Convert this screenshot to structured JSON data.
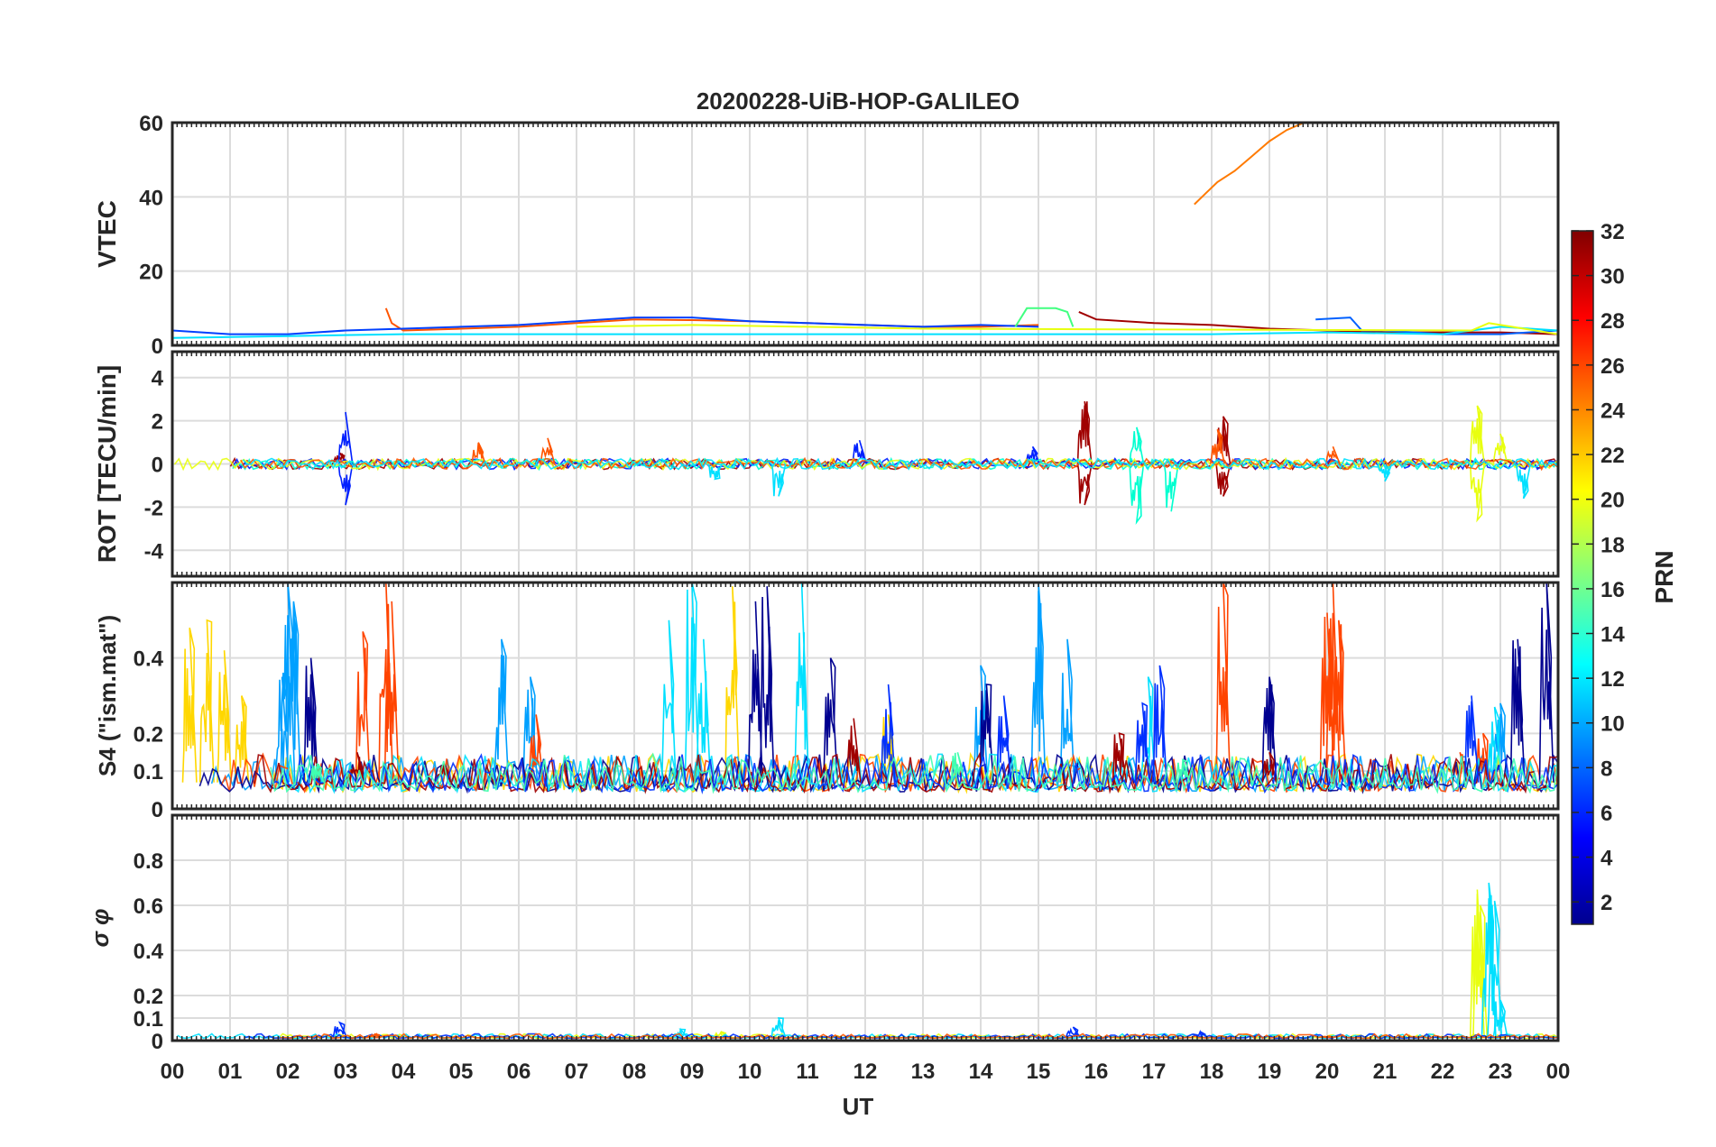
{
  "chart_data": {
    "title": "20200228-UiB-HOP-GALILEO",
    "type": "line",
    "xlabel": "UT",
    "x_unit": "hour UT",
    "xlim": [
      0,
      24
    ],
    "x_tick_labels": [
      "00",
      "01",
      "02",
      "03",
      "04",
      "05",
      "06",
      "07",
      "08",
      "09",
      "10",
      "11",
      "12",
      "13",
      "14",
      "15",
      "16",
      "17",
      "18",
      "19",
      "20",
      "21",
      "22",
      "23",
      "00"
    ],
    "grid": true,
    "colorbar": {
      "label": "PRN",
      "range": [
        1,
        32
      ],
      "ticks": [
        "32",
        "30",
        "28",
        "26",
        "24",
        "22",
        "20",
        "18",
        "16",
        "14",
        "12",
        "10",
        "8",
        "6",
        "4",
        "2"
      ],
      "colormap": "jet"
    },
    "panels": [
      {
        "id": "vtec",
        "ylabel": "VTEC",
        "ylim": [
          0,
          60
        ],
        "y_tick_labels": [
          "60",
          "40",
          "20",
          "0"
        ],
        "series": [
          {
            "prn": 24,
            "color": "#ff7a00",
            "points": [
              [
                17.7,
                38
              ],
              [
                17.9,
                41
              ],
              [
                18.1,
                44
              ],
              [
                18.4,
                47
              ],
              [
                18.7,
                51
              ],
              [
                19.0,
                55
              ],
              [
                19.3,
                58
              ],
              [
                19.6,
                60
              ]
            ]
          },
          {
            "prn": 25,
            "color": "#ff5500",
            "points": [
              [
                3.7,
                10
              ],
              [
                3.8,
                6
              ],
              [
                4.0,
                4
              ],
              [
                5,
                4.5
              ],
              [
                6,
                5
              ],
              [
                7,
                6
              ],
              [
                8,
                7
              ],
              [
                9,
                6.8
              ],
              [
                10,
                6.5
              ],
              [
                11,
                6
              ],
              [
                12,
                5.5
              ],
              [
                13,
                5
              ],
              [
                14,
                5
              ],
              [
                15,
                5.5
              ]
            ]
          },
          {
            "prn": 4,
            "color": "#0040ff",
            "points": [
              [
                0,
                4
              ],
              [
                1,
                3
              ],
              [
                2,
                3
              ],
              [
                3,
                4
              ],
              [
                4,
                4.5
              ],
              [
                5,
                5
              ],
              [
                6,
                5.5
              ],
              [
                7,
                6.5
              ],
              [
                8,
                7.5
              ],
              [
                9,
                7.5
              ],
              [
                10,
                6.5
              ],
              [
                11,
                6
              ],
              [
                12,
                5.5
              ],
              [
                13,
                5
              ],
              [
                14,
                5.5
              ],
              [
                15,
                5
              ]
            ]
          },
          {
            "prn": 14,
            "color": "#40ff80",
            "points": [
              [
                14.6,
                5
              ],
              [
                14.8,
                10
              ],
              [
                15.3,
                10
              ],
              [
                15.5,
                9
              ],
              [
                15.6,
                5
              ]
            ]
          },
          {
            "prn": 31,
            "color": "#a00000",
            "points": [
              [
                15.7,
                9
              ],
              [
                16,
                7
              ],
              [
                17,
                6
              ],
              [
                18,
                5.5
              ],
              [
                19,
                4.5
              ],
              [
                20,
                4
              ],
              [
                21,
                3.5
              ],
              [
                22,
                3.5
              ],
              [
                23,
                3.5
              ],
              [
                24,
                3
              ]
            ]
          },
          {
            "prn": 7,
            "color": "#0060ff",
            "points": [
              [
                19.8,
                7
              ],
              [
                20.4,
                7.5
              ],
              [
                20.6,
                4
              ],
              [
                21,
                4
              ],
              [
                22,
                3
              ],
              [
                23,
                3
              ],
              [
                24,
                4
              ]
            ]
          },
          {
            "prn": 12,
            "color": "#00e0ff",
            "points": [
              [
                0,
                2
              ],
              [
                2,
                2.5
              ],
              [
                4,
                3
              ],
              [
                16,
                3
              ],
              [
                18,
                3
              ],
              [
                20,
                3.5
              ],
              [
                22,
                3
              ],
              [
                23,
                5
              ],
              [
                24,
                4
              ]
            ]
          },
          {
            "prn": 20,
            "color": "#e8ff10",
            "points": [
              [
                7,
                5
              ],
              [
                9,
                5.5
              ],
              [
                11,
                5
              ],
              [
                13,
                4.5
              ],
              [
                22.5,
                4
              ],
              [
                22.8,
                6
              ],
              [
                23.2,
                5
              ],
              [
                24,
                3
              ]
            ]
          }
        ]
      },
      {
        "id": "rot",
        "ylabel": "ROT [TECU/min]",
        "ylim": [
          -5.2,
          5.2
        ],
        "y_tick_labels": [
          "4",
          "2",
          "0",
          "-2",
          "-4"
        ],
        "series": [
          {
            "prn": 31,
            "color": "#a00000",
            "spikes": [
              [
                2.9,
                0.5
              ],
              [
                15.8,
                2.9
              ],
              [
                15.8,
                -1.9
              ],
              [
                18.2,
                2.2
              ],
              [
                18.2,
                -1.5
              ]
            ]
          },
          {
            "prn": 4,
            "color": "#0020ff",
            "spikes": [
              [
                3.0,
                2.4
              ],
              [
                3.0,
                -1.9
              ],
              [
                11.9,
                1.1
              ],
              [
                14.9,
                0.8
              ]
            ]
          },
          {
            "prn": 13,
            "color": "#00ffd0",
            "spikes": [
              [
                16.7,
                1.7
              ],
              [
                16.7,
                -2.7
              ],
              [
                17.3,
                -2.2
              ]
            ]
          },
          {
            "prn": 19,
            "color": "#e8ff10",
            "spikes": [
              [
                22.6,
                2.7
              ],
              [
                22.6,
                -2.6
              ],
              [
                23.0,
                1.4
              ]
            ]
          },
          {
            "prn": 25,
            "color": "#ff5500",
            "spikes": [
              [
                5.3,
                1.0
              ],
              [
                6.5,
                1.2
              ],
              [
                18.1,
                1.6
              ],
              [
                20.1,
                0.8
              ]
            ]
          },
          {
            "prn": 12,
            "color": "#00e0ff",
            "spikes": [
              [
                9.4,
                -0.7
              ],
              [
                10.5,
                -1.5
              ],
              [
                21.0,
                -0.8
              ],
              [
                23.4,
                -1.6
              ]
            ]
          }
        ]
      },
      {
        "id": "s4",
        "ylabel": "S4 (\"ism.mat\")",
        "ylim": [
          0,
          0.6
        ],
        "y_tick_labels": [
          "0.4",
          "0.2",
          "0.1",
          "0"
        ],
        "series": [
          {
            "prn": 20,
            "color": "#ffd700",
            "spikes": [
              [
                0.3,
                0.48
              ],
              [
                0.6,
                0.5
              ],
              [
                0.9,
                0.42
              ],
              [
                1.2,
                0.3
              ],
              [
                9.7,
                0.59
              ],
              [
                12.4,
                0.25
              ]
            ]
          },
          {
            "prn": 10,
            "color": "#00a0ff",
            "spikes": [
              [
                1.9,
                0.35
              ],
              [
                2.0,
                0.6
              ],
              [
                2.1,
                0.55
              ],
              [
                5.7,
                0.45
              ],
              [
                6.2,
                0.35
              ],
              [
                14.0,
                0.38
              ],
              [
                15.0,
                0.6
              ],
              [
                15.5,
                0.45
              ],
              [
                23.0,
                0.28
              ]
            ]
          },
          {
            "prn": 25,
            "color": "#ff4400",
            "spikes": [
              [
                3.3,
                0.47
              ],
              [
                3.7,
                0.6
              ],
              [
                3.8,
                0.55
              ],
              [
                6.3,
                0.25
              ],
              [
                18.2,
                0.6
              ],
              [
                20.0,
                0.52
              ],
              [
                20.1,
                0.6
              ],
              [
                20.2,
                0.5
              ],
              [
                22.3,
                0.15
              ],
              [
                22.7,
                0.2
              ]
            ]
          },
          {
            "prn": 1,
            "color": "#000090",
            "spikes": [
              [
                2.4,
                0.4
              ],
              [
                10.1,
                0.55
              ],
              [
                10.3,
                0.59
              ],
              [
                11.4,
                0.4
              ],
              [
                14.1,
                0.33
              ],
              [
                19.0,
                0.35
              ],
              [
                23.3,
                0.45
              ],
              [
                23.8,
                0.6
              ]
            ]
          },
          {
            "prn": 12,
            "color": "#00e0ff",
            "spikes": [
              [
                8.6,
                0.5
              ],
              [
                9.0,
                0.6
              ],
              [
                9.2,
                0.45
              ],
              [
                10.9,
                0.6
              ],
              [
                16.9,
                0.35
              ],
              [
                22.9,
                0.27
              ]
            ]
          },
          {
            "prn": 31,
            "color": "#a00000",
            "spikes": [
              [
                3.2,
                0.15
              ],
              [
                4.7,
                0.12
              ],
              [
                11.8,
                0.24
              ],
              [
                16.4,
                0.2
              ],
              [
                19.0,
                0.15
              ]
            ]
          },
          {
            "prn": 4,
            "color": "#0030ff",
            "spikes": [
              [
                12.4,
                0.33
              ],
              [
                14.4,
                0.3
              ],
              [
                16.8,
                0.28
              ],
              [
                17.1,
                0.38
              ],
              [
                22.5,
                0.3
              ]
            ]
          },
          {
            "prn": 14,
            "color": "#40ffb0",
            "spikes": [
              [
                2.5,
                0.12
              ],
              [
                13.6,
                0.15
              ],
              [
                17.5,
                0.13
              ]
            ]
          }
        ]
      },
      {
        "id": "sigma_phi",
        "ylabel": "σ φ",
        "ylim": [
          0,
          1.0
        ],
        "y_tick_labels": [
          "0.8",
          "0.6",
          "0.4",
          "0.2",
          "0.1",
          "0"
        ],
        "series": [
          {
            "prn": 19,
            "color": "#e8ff10",
            "spikes": [
              [
                22.6,
                0.67
              ],
              [
                22.65,
                0.6
              ],
              [
                9.5,
                0.04
              ]
            ]
          },
          {
            "prn": 12,
            "color": "#00e0ff",
            "spikes": [
              [
                22.8,
                0.7
              ],
              [
                22.9,
                0.62
              ],
              [
                23.0,
                0.18
              ],
              [
                10.5,
                0.1
              ],
              [
                8.8,
                0.05
              ]
            ]
          },
          {
            "prn": 4,
            "color": "#0030ff",
            "spikes": [
              [
                2.9,
                0.08
              ],
              [
                15.6,
                0.06
              ],
              [
                17.8,
                0.04
              ]
            ]
          },
          {
            "prn": 25,
            "color": "#ff5500",
            "spikes": [
              [
                3.5,
                0.03
              ],
              [
                20.0,
                0.02
              ]
            ]
          }
        ]
      }
    ]
  }
}
